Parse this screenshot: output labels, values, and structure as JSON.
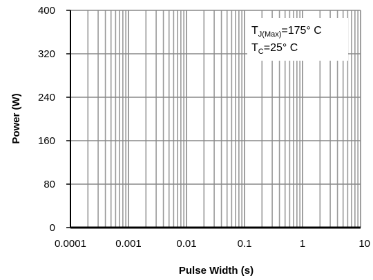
{
  "chart_data": {
    "type": "line",
    "title": "",
    "xlabel": "Pulse Width (s)",
    "ylabel": "Power (W)",
    "x_scale": "log",
    "xlim": [
      0.0001,
      10
    ],
    "ylim": [
      0,
      400
    ],
    "x_ticks": [
      "0.0001",
      "0.001",
      "0.01",
      "0.1",
      "1",
      "10"
    ],
    "y_ticks": [
      "0",
      "80",
      "160",
      "240",
      "320",
      "400"
    ],
    "grid": true,
    "series": [],
    "annotation": {
      "line1": {
        "base": "T",
        "sub": "J(Max)",
        "rest": "=175° C"
      },
      "line2": {
        "base": "T",
        "sub": "C",
        "rest": "=25° C"
      }
    },
    "colors": {
      "grid_major": "#888888",
      "grid_minor": "#999999",
      "axis": "#000000"
    }
  }
}
